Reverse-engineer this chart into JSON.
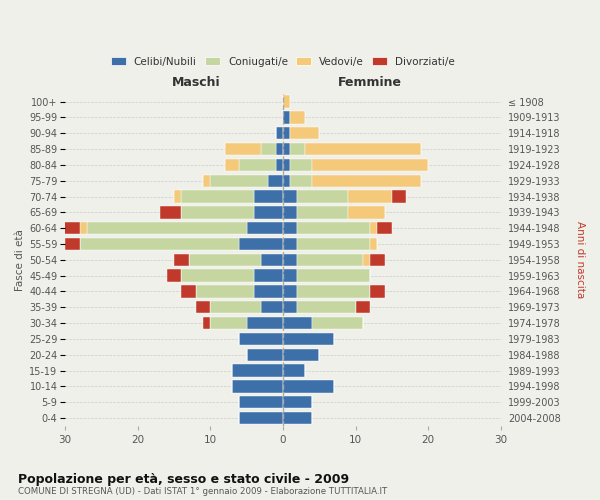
{
  "age_groups": [
    "0-4",
    "5-9",
    "10-14",
    "15-19",
    "20-24",
    "25-29",
    "30-34",
    "35-39",
    "40-44",
    "45-49",
    "50-54",
    "55-59",
    "60-64",
    "65-69",
    "70-74",
    "75-79",
    "80-84",
    "85-89",
    "90-94",
    "95-99",
    "100+"
  ],
  "birth_years": [
    "2004-2008",
    "1999-2003",
    "1994-1998",
    "1989-1993",
    "1984-1988",
    "1979-1983",
    "1974-1978",
    "1969-1973",
    "1964-1968",
    "1959-1963",
    "1954-1958",
    "1949-1953",
    "1944-1948",
    "1939-1943",
    "1934-1938",
    "1929-1933",
    "1924-1928",
    "1919-1923",
    "1914-1918",
    "1909-1913",
    "≤ 1908"
  ],
  "male_celibi": [
    6,
    6,
    7,
    7,
    5,
    6,
    5,
    3,
    4,
    4,
    3,
    6,
    5,
    4,
    4,
    2,
    1,
    1,
    1,
    0,
    0
  ],
  "male_coniugati": [
    0,
    0,
    0,
    0,
    0,
    0,
    5,
    7,
    8,
    10,
    10,
    22,
    22,
    10,
    10,
    8,
    5,
    2,
    0,
    0,
    0
  ],
  "male_vedovi": [
    0,
    0,
    0,
    0,
    0,
    0,
    0,
    0,
    0,
    0,
    0,
    0,
    1,
    0,
    1,
    1,
    2,
    5,
    0,
    0,
    0
  ],
  "male_divorziati": [
    0,
    0,
    0,
    0,
    0,
    0,
    1,
    2,
    2,
    2,
    2,
    2,
    3,
    3,
    0,
    0,
    0,
    0,
    0,
    0,
    0
  ],
  "female_celibi": [
    4,
    4,
    7,
    3,
    5,
    7,
    4,
    2,
    2,
    2,
    2,
    2,
    2,
    2,
    2,
    1,
    1,
    1,
    1,
    1,
    0
  ],
  "female_coniugati": [
    0,
    0,
    0,
    0,
    0,
    0,
    7,
    8,
    10,
    10,
    9,
    10,
    10,
    7,
    7,
    3,
    3,
    2,
    0,
    0,
    0
  ],
  "female_vedovi": [
    0,
    0,
    0,
    0,
    0,
    0,
    0,
    0,
    0,
    0,
    1,
    1,
    1,
    5,
    6,
    15,
    16,
    16,
    4,
    2,
    1
  ],
  "female_divorziati": [
    0,
    0,
    0,
    0,
    0,
    0,
    0,
    2,
    2,
    0,
    2,
    0,
    2,
    0,
    2,
    0,
    0,
    0,
    0,
    0,
    0
  ],
  "color_celibi": "#3d6fa8",
  "color_coniugati": "#c5d6a0",
  "color_vedovi": "#f5c97a",
  "color_divorziati": "#c0392b",
  "xlim": 30,
  "title": "Popolazione per età, sesso e stato civile - 2009",
  "subtitle": "COMUNE DI STREGNA (UD) - Dati ISTAT 1° gennaio 2009 - Elaborazione TUTTITALIA.IT",
  "ylabel_left": "Fasce di età",
  "ylabel_right": "Anni di nascita",
  "xlabel_left": "Maschi",
  "xlabel_right": "Femmine",
  "bg_color": "#f0f0eb"
}
